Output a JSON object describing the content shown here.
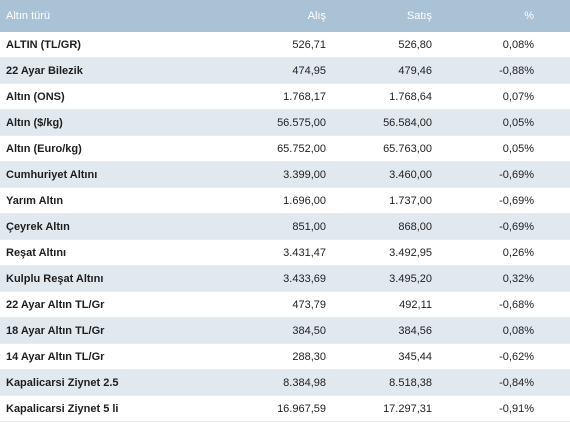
{
  "table": {
    "headers": {
      "name": "Altın türü",
      "buy": "Alış",
      "sell": "Satış",
      "change": "%"
    },
    "rows": [
      {
        "name": "ALTIN (TL/GR)",
        "buy": "526,71",
        "sell": "526,80",
        "change": "0,08%"
      },
      {
        "name": "22 Ayar Bilezik",
        "buy": "474,95",
        "sell": "479,46",
        "change": "-0,88%"
      },
      {
        "name": "Altın (ONS)",
        "buy": "1.768,17",
        "sell": "1.768,64",
        "change": "0,07%"
      },
      {
        "name": "Altın ($/kg)",
        "buy": "56.575,00",
        "sell": "56.584,00",
        "change": "0,05%"
      },
      {
        "name": "Altın (Euro/kg)",
        "buy": "65.752,00",
        "sell": "65.763,00",
        "change": "0,05%"
      },
      {
        "name": "Cumhuriyet Altını",
        "buy": "3.399,00",
        "sell": "3.460,00",
        "change": "-0,69%"
      },
      {
        "name": "Yarım Altın",
        "buy": "1.696,00",
        "sell": "1.737,00",
        "change": "-0,69%"
      },
      {
        "name": "Çeyrek Altın",
        "buy": "851,00",
        "sell": "868,00",
        "change": "-0,69%"
      },
      {
        "name": "Reşat Altını",
        "buy": "3.431,47",
        "sell": "3.492,95",
        "change": "0,26%"
      },
      {
        "name": "Kulplu Reşat Altını",
        "buy": "3.433,69",
        "sell": "3.495,20",
        "change": "0,32%"
      },
      {
        "name": "22 Ayar Altın TL/Gr",
        "buy": "473,79",
        "sell": "492,11",
        "change": "-0,68%"
      },
      {
        "name": "18 Ayar Altın TL/Gr",
        "buy": "384,50",
        "sell": "384,56",
        "change": "0,08%"
      },
      {
        "name": "14 Ayar Altın TL/Gr",
        "buy": "288,30",
        "sell": "345,44",
        "change": "-0,62%"
      },
      {
        "name": "Kapalicarsi Ziynet 2.5",
        "buy": "8.384,98",
        "sell": "8.518,38",
        "change": "-0,84%"
      },
      {
        "name": "Kapalicarsi Ziynet 5 li",
        "buy": "16.967,59",
        "sell": "17.297,31",
        "change": "-0,91%"
      }
    ]
  }
}
